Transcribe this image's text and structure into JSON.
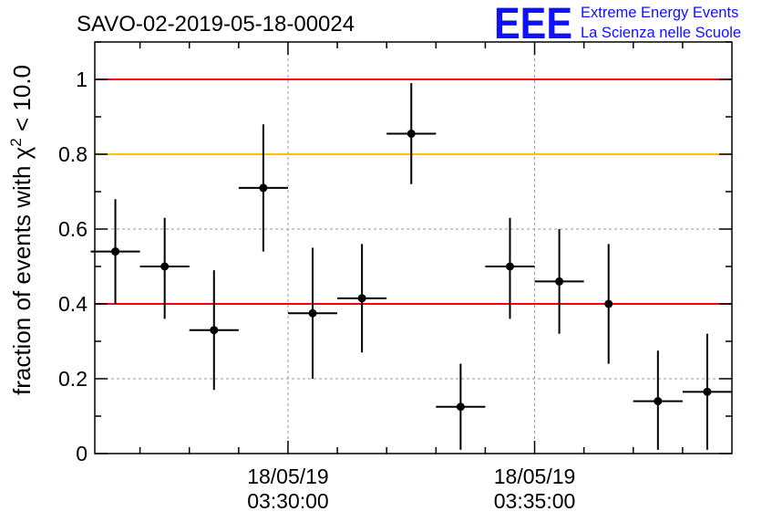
{
  "title": "SAVO-02-2019-05-18-00024",
  "logo": {
    "letters": "EEE",
    "line1": "Extreme Energy Events",
    "line2": "La Scienza nelle Scuole",
    "color": "#1010ff"
  },
  "chart_data": {
    "type": "scatter",
    "ylabel_prefix": "fraction of events with ",
    "ylabel_symbol": "χ",
    "ylabel_sup": "2",
    "ylabel_suffix": " < 10.0",
    "ylim": [
      0,
      1.1
    ],
    "yticks": [
      0,
      0.2,
      0.4,
      0.6,
      0.8,
      1
    ],
    "ytick_labels": [
      "0",
      "0.2",
      "0.4",
      "0.6",
      "0.8",
      "1"
    ],
    "xlim": [
      "03:26:05",
      "03:39:00"
    ],
    "xtick_labels": [
      {
        "time": "03:30:00",
        "date": "18/05/19",
        "label": "03:30:00"
      },
      {
        "time": "03:35:00",
        "date": "18/05/19",
        "label": "03:35:00"
      }
    ],
    "x_minor_tick_times": [
      "03:27:00",
      "03:28:00",
      "03:29:00",
      "03:31:00",
      "03:32:00",
      "03:33:00",
      "03:34:00",
      "03:36:00",
      "03:37:00",
      "03:38:00"
    ],
    "grid": true,
    "reference_lines": [
      {
        "y": 1.0,
        "color": "#ff0000"
      },
      {
        "y": 0.8,
        "color": "#ffc000"
      },
      {
        "y": 0.4,
        "color": "#ff0000"
      }
    ],
    "points": [
      {
        "x": "03:26:30",
        "y": 0.54,
        "y_low": 0.4,
        "y_high": 0.68,
        "x_half_width_s": 30
      },
      {
        "x": "03:27:30",
        "y": 0.5,
        "y_low": 0.36,
        "y_high": 0.63,
        "x_half_width_s": 30
      },
      {
        "x": "03:28:30",
        "y": 0.33,
        "y_low": 0.17,
        "y_high": 0.49,
        "x_half_width_s": 30
      },
      {
        "x": "03:29:30",
        "y": 0.71,
        "y_low": 0.54,
        "y_high": 0.88,
        "x_half_width_s": 30
      },
      {
        "x": "03:30:30",
        "y": 0.375,
        "y_low": 0.2,
        "y_high": 0.55,
        "x_half_width_s": 30
      },
      {
        "x": "03:31:30",
        "y": 0.415,
        "y_low": 0.27,
        "y_high": 0.56,
        "x_half_width_s": 30
      },
      {
        "x": "03:32:30",
        "y": 0.855,
        "y_low": 0.72,
        "y_high": 0.99,
        "x_half_width_s": 30
      },
      {
        "x": "03:33:30",
        "y": 0.125,
        "y_low": 0.01,
        "y_high": 0.24,
        "x_half_width_s": 30
      },
      {
        "x": "03:34:30",
        "y": 0.5,
        "y_low": 0.36,
        "y_high": 0.63,
        "x_half_width_s": 30
      },
      {
        "x": "03:35:30",
        "y": 0.46,
        "y_low": 0.32,
        "y_high": 0.6,
        "x_half_width_s": 30
      },
      {
        "x": "03:36:30",
        "y": 0.4,
        "y_low": 0.24,
        "y_high": 0.56,
        "x_half_width_s": 0
      },
      {
        "x": "03:37:30",
        "y": 0.14,
        "y_low": 0.01,
        "y_high": 0.275,
        "x_half_width_s": 30
      },
      {
        "x": "03:38:30",
        "y": 0.165,
        "y_low": 0.01,
        "y_high": 0.32,
        "x_half_width_s": 30
      }
    ],
    "marker_color": "#000000"
  }
}
